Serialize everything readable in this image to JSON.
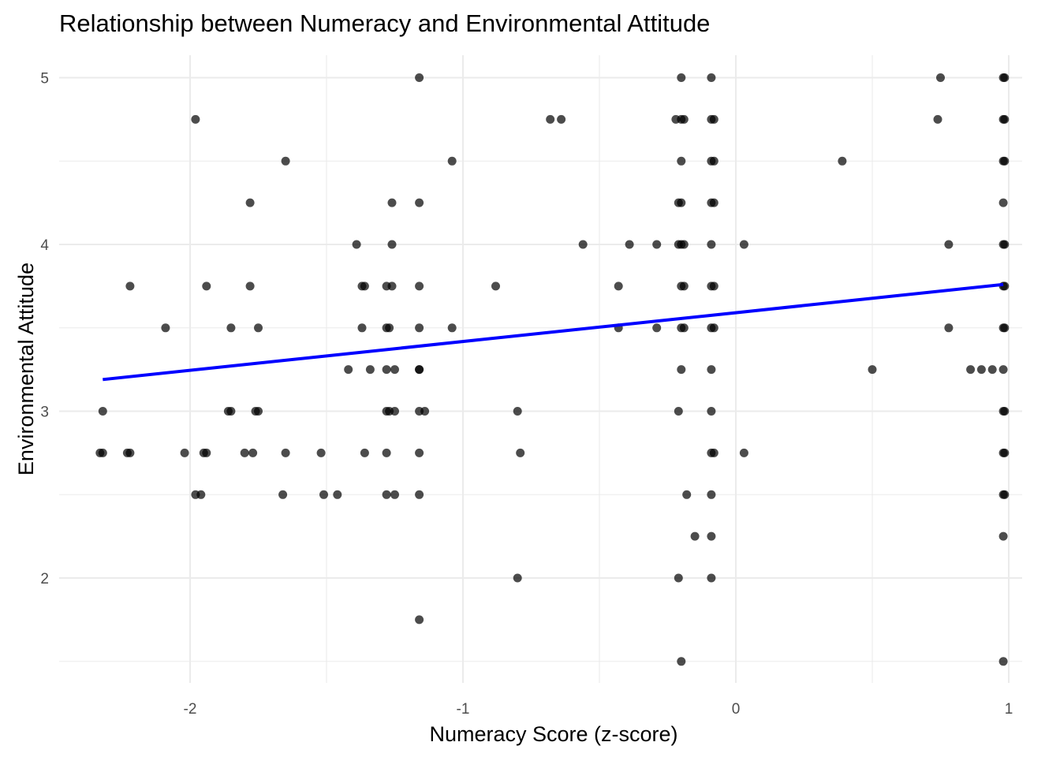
{
  "chart_data": {
    "type": "scatter",
    "title": "Relationship between Numeracy and Environmental Attitude",
    "xlabel": "Numeracy Score (z-score)",
    "ylabel": "Environmental Attitude",
    "xlim": [
      -2.5,
      1.1
    ],
    "ylim": [
      1.4,
      5.15
    ],
    "x_ticks": [
      -2,
      -1,
      0,
      1
    ],
    "x_tick_labels": [
      "-2",
      "-1",
      "0",
      "1"
    ],
    "x_minor_ticks": [
      -2.5,
      -1.5,
      -0.5,
      0.5
    ],
    "y_ticks": [
      2,
      3,
      4,
      5
    ],
    "y_tick_labels": [
      "2",
      "3",
      "4",
      "5"
    ],
    "y_minor_ticks": [
      1.5,
      2.5,
      3.5,
      4.5
    ],
    "grid": true,
    "legend": "none",
    "fit_line": {
      "x": [
        -2.32,
        0.98
      ],
      "y": [
        3.19,
        3.76
      ],
      "color": "#0000ff"
    },
    "point_color": "#000000",
    "points": [
      [
        -2.32,
        3.0
      ],
      [
        -2.33,
        2.75
      ],
      [
        -2.32,
        2.75
      ],
      [
        -2.22,
        3.75
      ],
      [
        -2.23,
        2.75
      ],
      [
        -2.22,
        2.75
      ],
      [
        -2.09,
        3.5
      ],
      [
        -2.02,
        2.75
      ],
      [
        -1.98,
        4.75
      ],
      [
        -1.98,
        2.5
      ],
      [
        -1.96,
        2.5
      ],
      [
        -1.95,
        2.75
      ],
      [
        -1.94,
        3.75
      ],
      [
        -1.94,
        2.75
      ],
      [
        -1.86,
        3.0
      ],
      [
        -1.85,
        3.5
      ],
      [
        -1.85,
        3.0
      ],
      [
        -1.8,
        2.75
      ],
      [
        -1.78,
        4.25
      ],
      [
        -1.78,
        3.75
      ],
      [
        -1.77,
        2.75
      ],
      [
        -1.75,
        3.5
      ],
      [
        -1.76,
        3.0
      ],
      [
        -1.75,
        3.0
      ],
      [
        -1.65,
        4.5
      ],
      [
        -1.65,
        2.75
      ],
      [
        -1.66,
        2.5
      ],
      [
        -1.52,
        2.75
      ],
      [
        -1.51,
        2.5
      ],
      [
        -1.46,
        2.5
      ],
      [
        -1.42,
        3.25
      ],
      [
        -1.39,
        4.0
      ],
      [
        -1.37,
        3.75
      ],
      [
        -1.37,
        3.5
      ],
      [
        -1.36,
        3.75
      ],
      [
        -1.36,
        2.75
      ],
      [
        -1.34,
        3.25
      ],
      [
        -1.28,
        3.75
      ],
      [
        -1.28,
        3.5
      ],
      [
        -1.28,
        3.25
      ],
      [
        -1.28,
        3.0
      ],
      [
        -1.28,
        2.75
      ],
      [
        -1.28,
        2.5
      ],
      [
        -1.27,
        3.0
      ],
      [
        -1.27,
        3.5
      ],
      [
        -1.26,
        4.25
      ],
      [
        -1.26,
        4.0
      ],
      [
        -1.26,
        3.75
      ],
      [
        -1.25,
        3.25
      ],
      [
        -1.25,
        3.0
      ],
      [
        -1.25,
        2.5
      ],
      [
        -1.16,
        5.0
      ],
      [
        -1.16,
        4.25
      ],
      [
        -1.16,
        3.75
      ],
      [
        -1.16,
        3.5
      ],
      [
        -1.16,
        3.25
      ],
      [
        -1.16,
        3.25
      ],
      [
        -1.16,
        3.0
      ],
      [
        -1.16,
        2.75
      ],
      [
        -1.16,
        2.5
      ],
      [
        -1.16,
        1.75
      ],
      [
        -1.14,
        3.0
      ],
      [
        -1.04,
        4.5
      ],
      [
        -1.04,
        3.5
      ],
      [
        -0.88,
        3.75
      ],
      [
        -0.8,
        3.0
      ],
      [
        -0.8,
        2.0
      ],
      [
        -0.79,
        2.75
      ],
      [
        -0.68,
        4.75
      ],
      [
        -0.64,
        4.75
      ],
      [
        -0.56,
        4.0
      ],
      [
        -0.43,
        3.75
      ],
      [
        -0.43,
        3.5
      ],
      [
        -0.39,
        4.0
      ],
      [
        -0.29,
        4.0
      ],
      [
        -0.29,
        3.5
      ],
      [
        -0.22,
        4.75
      ],
      [
        -0.21,
        4.25
      ],
      [
        -0.21,
        4.0
      ],
      [
        -0.21,
        3.0
      ],
      [
        -0.21,
        2.0
      ],
      [
        -0.2,
        5.0
      ],
      [
        -0.2,
        4.75
      ],
      [
        -0.2,
        4.5
      ],
      [
        -0.2,
        4.25
      ],
      [
        -0.2,
        4.0
      ],
      [
        -0.2,
        3.75
      ],
      [
        -0.2,
        3.5
      ],
      [
        -0.2,
        3.25
      ],
      [
        -0.2,
        1.5
      ],
      [
        -0.19,
        4.75
      ],
      [
        -0.19,
        4.0
      ],
      [
        -0.19,
        3.75
      ],
      [
        -0.19,
        3.5
      ],
      [
        -0.18,
        2.5
      ],
      [
        -0.15,
        2.25
      ],
      [
        -0.09,
        5.0
      ],
      [
        -0.09,
        4.75
      ],
      [
        -0.09,
        4.5
      ],
      [
        -0.09,
        4.25
      ],
      [
        -0.09,
        4.0
      ],
      [
        -0.09,
        3.75
      ],
      [
        -0.09,
        3.5
      ],
      [
        -0.09,
        3.25
      ],
      [
        -0.09,
        3.0
      ],
      [
        -0.09,
        2.75
      ],
      [
        -0.09,
        2.5
      ],
      [
        -0.09,
        2.25
      ],
      [
        -0.09,
        2.0
      ],
      [
        -0.08,
        4.75
      ],
      [
        -0.08,
        4.5
      ],
      [
        -0.08,
        4.25
      ],
      [
        -0.08,
        3.75
      ],
      [
        -0.08,
        3.5
      ],
      [
        -0.08,
        2.75
      ],
      [
        0.03,
        4.0
      ],
      [
        0.03,
        2.75
      ],
      [
        0.39,
        4.5
      ],
      [
        0.5,
        3.25
      ],
      [
        0.74,
        4.75
      ],
      [
        0.75,
        5.0
      ],
      [
        0.78,
        4.0
      ],
      [
        0.78,
        3.5
      ],
      [
        0.86,
        3.25
      ],
      [
        0.9,
        3.25
      ],
      [
        0.94,
        3.25
      ],
      [
        0.98,
        5.0
      ],
      [
        0.98,
        4.75
      ],
      [
        0.98,
        4.5
      ],
      [
        0.98,
        4.25
      ],
      [
        0.98,
        4.0
      ],
      [
        0.98,
        3.75
      ],
      [
        0.98,
        3.5
      ],
      [
        0.98,
        3.25
      ],
      [
        0.98,
        3.0
      ],
      [
        0.98,
        2.75
      ],
      [
        0.98,
        2.5
      ],
      [
        0.98,
        2.25
      ],
      [
        0.98,
        1.5
      ],
      [
        0.985,
        5.0
      ],
      [
        0.985,
        4.75
      ],
      [
        0.985,
        4.5
      ],
      [
        0.985,
        4.0
      ],
      [
        0.985,
        3.75
      ],
      [
        0.985,
        3.5
      ],
      [
        0.985,
        3.0
      ],
      [
        0.985,
        2.75
      ],
      [
        0.985,
        2.5
      ]
    ]
  }
}
